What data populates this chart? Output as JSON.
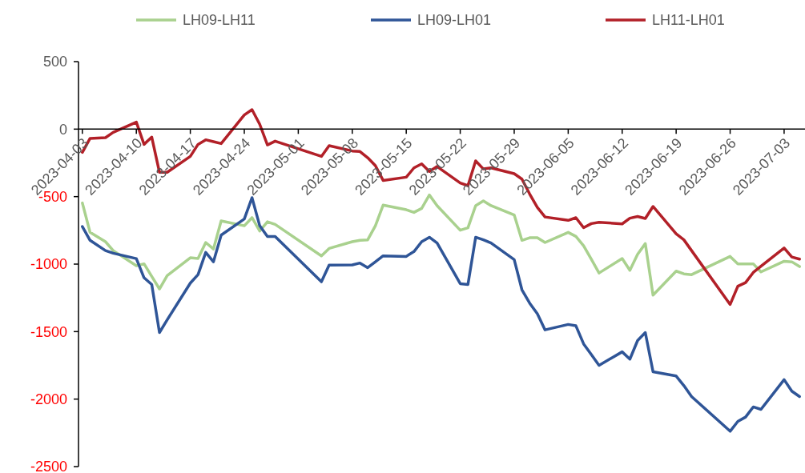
{
  "chart_data": {
    "type": "line",
    "x": [
      "2023-04-03",
      "2023-04-04",
      "2023-04-06",
      "2023-04-07",
      "2023-04-10",
      "2023-04-11",
      "2023-04-12",
      "2023-04-13",
      "2023-04-14",
      "2023-04-17",
      "2023-04-18",
      "2023-04-19",
      "2023-04-20",
      "2023-04-21",
      "2023-04-24",
      "2023-04-25",
      "2023-04-26",
      "2023-04-27",
      "2023-04-28",
      "2023-05-04",
      "2023-05-05",
      "2023-05-08",
      "2023-05-09",
      "2023-05-10",
      "2023-05-11",
      "2023-05-12",
      "2023-05-15",
      "2023-05-16",
      "2023-05-17",
      "2023-05-18",
      "2023-05-19",
      "2023-05-22",
      "2023-05-23",
      "2023-05-24",
      "2023-05-25",
      "2023-05-26",
      "2023-05-29",
      "2023-05-30",
      "2023-05-31",
      "2023-06-01",
      "2023-06-02",
      "2023-06-05",
      "2023-06-06",
      "2023-06-07",
      "2023-06-08",
      "2023-06-09",
      "2023-06-12",
      "2023-06-13",
      "2023-06-14",
      "2023-06-15",
      "2023-06-16",
      "2023-06-19",
      "2023-06-20",
      "2023-06-21",
      "2023-06-26",
      "2023-06-27",
      "2023-06-28",
      "2023-06-29",
      "2023-06-30",
      "2023-07-03",
      "2023-07-04",
      "2023-07-05"
    ],
    "series": [
      {
        "name": "LH09-LH11",
        "color": "#a9d18e",
        "values": [
          -547,
          -765,
          -834,
          -900,
          -1012,
          -998,
          -1091,
          -1184,
          -1085,
          -953,
          -959,
          -840,
          -888,
          -680,
          -716,
          -656,
          -755,
          -686,
          -706,
          -939,
          -884,
          -834,
          -824,
          -820,
          -716,
          -563,
          -597,
          -617,
          -587,
          -488,
          -567,
          -749,
          -731,
          -567,
          -532,
          -567,
          -636,
          -824,
          -805,
          -805,
          -840,
          -765,
          -795,
          -864,
          -963,
          -1066,
          -959,
          -1046,
          -927,
          -848,
          -1230,
          -1052,
          -1072,
          -1078,
          -943,
          -998,
          -998,
          -998,
          -1058,
          -979,
          -983,
          -1018
        ]
      },
      {
        "name": "LH09-LH01",
        "color": "#2f5597",
        "values": [
          -722,
          -824,
          -900,
          -919,
          -959,
          -1101,
          -1151,
          -1507,
          -1413,
          -1141,
          -1078,
          -913,
          -983,
          -785,
          -666,
          -508,
          -716,
          -795,
          -795,
          -1131,
          -1008,
          -1006,
          -992,
          -1026,
          -983,
          -939,
          -943,
          -907,
          -834,
          -801,
          -844,
          -1145,
          -1151,
          -801,
          -820,
          -844,
          -967,
          -1190,
          -1289,
          -1368,
          -1487,
          -1447,
          -1457,
          -1591,
          -1670,
          -1750,
          -1650,
          -1704,
          -1566,
          -1507,
          -1797,
          -1829,
          -1900,
          -1981,
          -2238,
          -2165,
          -2133,
          -2058,
          -2076,
          -1856,
          -1941,
          -1981
        ]
      },
      {
        "name": "LH11-LH01",
        "color": "#b22028",
        "values": [
          -172,
          -69,
          -63,
          -24,
          52,
          -113,
          -59,
          -320,
          -320,
          -202,
          -113,
          -79,
          -93,
          -107,
          105,
          144,
          36,
          -117,
          -89,
          -202,
          -123,
          -162,
          -166,
          -212,
          -271,
          -380,
          -356,
          -287,
          -257,
          -314,
          -277,
          -399,
          -419,
          -235,
          -295,
          -287,
          -330,
          -370,
          -480,
          -580,
          -651,
          -676,
          -656,
          -730,
          -700,
          -690,
          -702,
          -660,
          -647,
          -662,
          -573,
          -775,
          -820,
          -900,
          -1299,
          -1164,
          -1137,
          -1062,
          -1015,
          -880,
          -947,
          -963
        ]
      }
    ],
    "xlim": [
      "2023-04-02T12:00",
      "2023-07-05T12:00"
    ],
    "xticks": [
      "2023-04-03",
      "2023-04-10",
      "2023-04-17",
      "2023-04-24",
      "2023-05-01",
      "2023-05-08",
      "2023-05-15",
      "2023-05-22",
      "2023-05-29",
      "2023-06-05",
      "2023-06-12",
      "2023-06-19",
      "2023-06-26",
      "2023-07-03"
    ],
    "ylim": [
      -2500,
      500
    ],
    "yticks": [
      500,
      0,
      -500,
      -1000,
      -1500,
      -2000,
      -2500
    ],
    "legend": "top",
    "grid": false
  }
}
